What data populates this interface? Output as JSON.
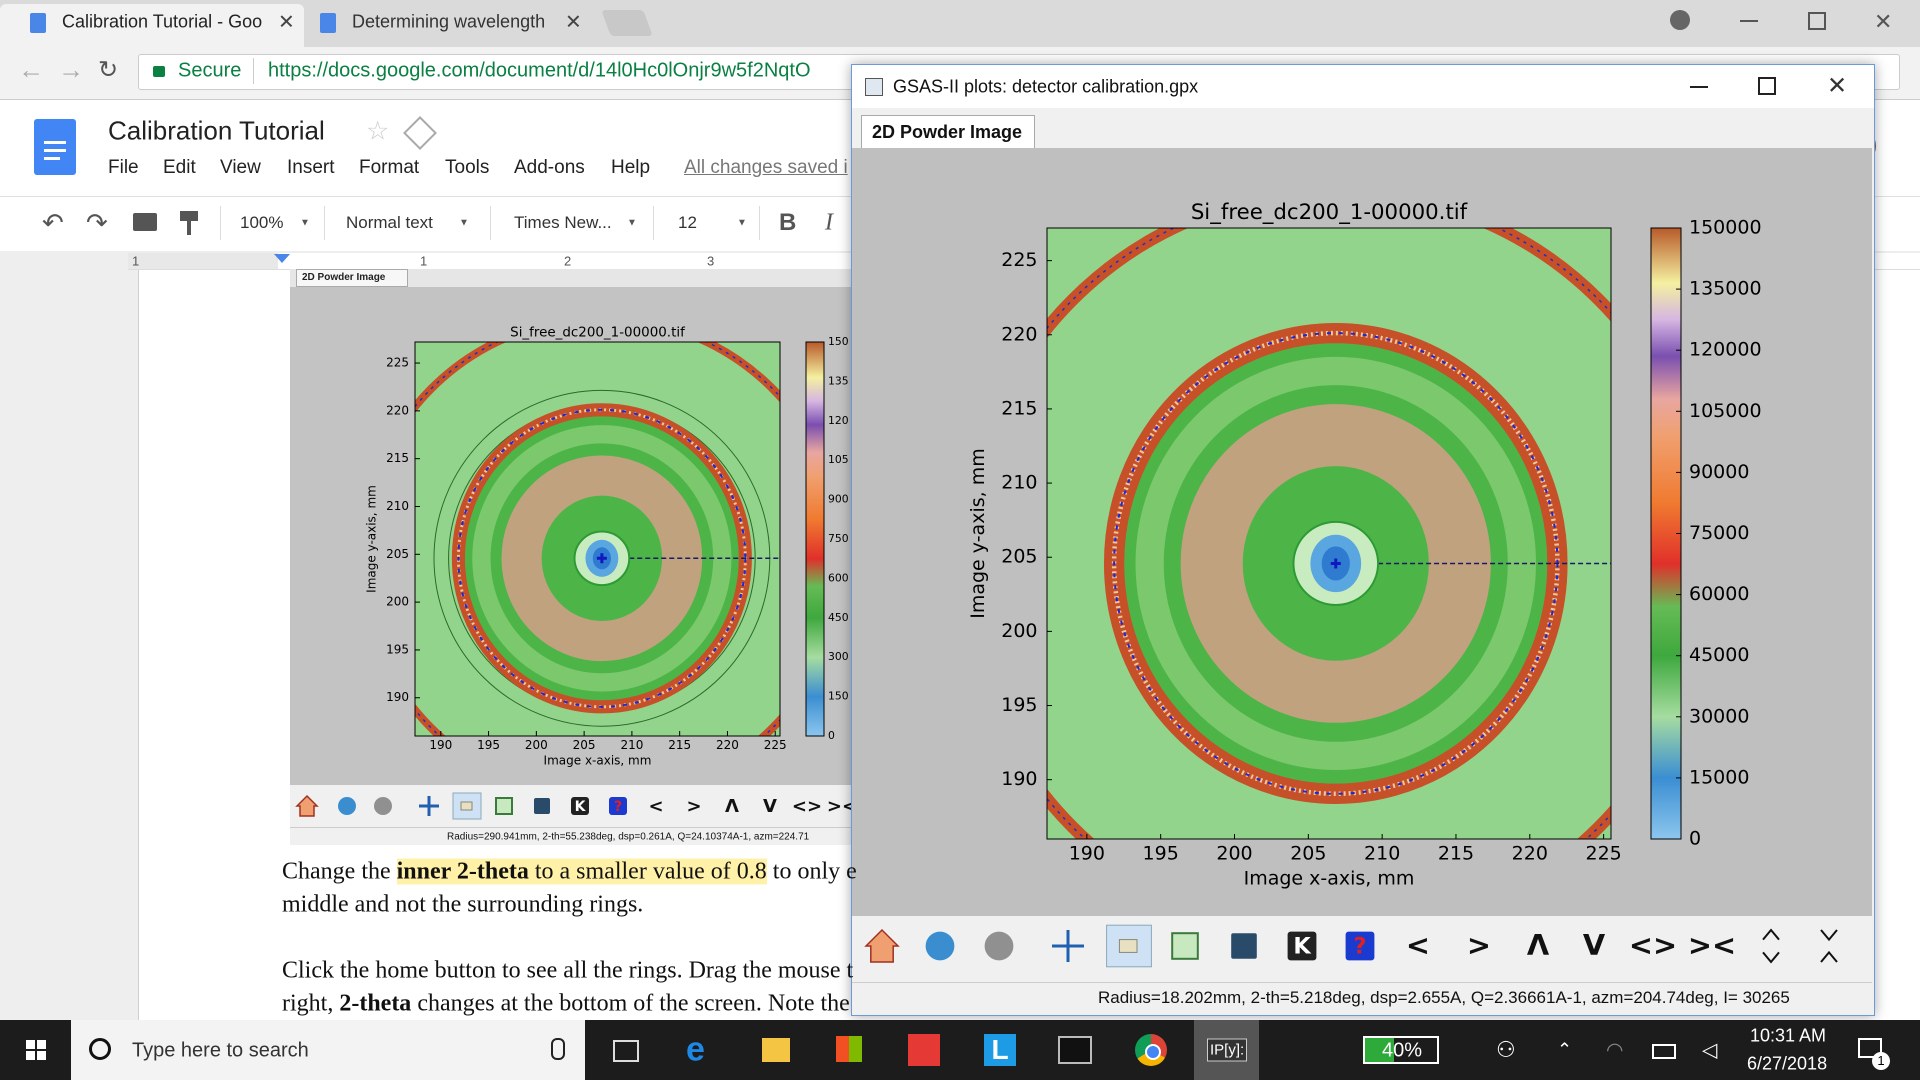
{
  "browser": {
    "tabs": [
      "Calibration Tutorial - Goo",
      "Determining wavelength"
    ],
    "secure_label": "Secure",
    "url": "https://docs.google.com/document/d/14l0Hc0lOnjr9w5f2NqtO"
  },
  "docs": {
    "title": "Calibration Tutorial",
    "menu": [
      "File",
      "Edit",
      "View",
      "Insert",
      "Format",
      "Tools",
      "Add-ons",
      "Help"
    ],
    "save_status": "All changes saved i",
    "toolbar": {
      "zoom": "100%",
      "style": "Normal text",
      "font": "Times New...",
      "size": "12",
      "bold": "B",
      "italic": "I"
    },
    "ruler": [
      "1",
      "1",
      "2",
      "3"
    ],
    "embedded_image": {
      "tab": "2D Powder Image",
      "plot": {
        "title": "Si_free_dc200_1-00000.tif",
        "xlabel": "Image x-axis, mm",
        "ylabel": "Image y-axis, mm",
        "xlim": [
          187.3,
          225.5
        ],
        "ylim": [
          186.0,
          227.2
        ],
        "xticks": [
          190,
          195,
          200,
          205,
          210,
          215,
          220,
          225
        ],
        "yticks": [
          190,
          195,
          200,
          205,
          210,
          215,
          220,
          225
        ],
        "colorbar_labels": [
          "150",
          "135",
          "120",
          "105",
          "900",
          "750",
          "600",
          "450",
          "300",
          "150",
          "0"
        ]
      },
      "toolbar": [
        "K",
        "?",
        "<",
        ">",
        "Λ",
        "V",
        "<>",
        "><"
      ],
      "status": "Radius=290.941mm, 2-th=55.238deg, dsp=0.261A, Q=24.10374A-1, azm=224.71"
    },
    "paragraphs": [
      [
        {
          "text": "Change the "
        },
        {
          "text": "inner 2-theta",
          "bold": true,
          "highlight": true
        },
        {
          "text": " to a smaller value of 0.8",
          "highlight": true
        },
        {
          "text": " to only e"
        }
      ],
      [
        {
          "text": "middle and not the surrounding rings."
        }
      ],
      [
        {
          "text": "Click the home button to see all the rings. Drag the mouse t"
        }
      ],
      [
        {
          "text": "right, "
        },
        {
          "text": "2-theta",
          "bold": true
        },
        {
          "text": " changes at the bottom of the screen. Note the"
        }
      ]
    ]
  },
  "gsas_window": {
    "title": "GSAS-II plots: detector calibration.gpx",
    "tab": "2D Powder Image",
    "plot": {
      "title": "Si_free_dc200_1-00000.tif",
      "xlabel": "Image x-axis, mm",
      "ylabel": "Image y-axis, mm",
      "xlim": [
        187.3,
        225.5
      ],
      "ylim": [
        186.0,
        227.2
      ],
      "xticks": [
        190,
        195,
        200,
        205,
        210,
        215,
        220,
        225
      ],
      "yticks": [
        190,
        195,
        200,
        205,
        210,
        215,
        220,
        225
      ],
      "clim": [
        0,
        150000
      ],
      "cticks": [
        0,
        15000,
        30000,
        45000,
        60000,
        75000,
        90000,
        105000,
        120000,
        135000,
        150000
      ]
    },
    "toolbar": [
      "K",
      "?",
      "<",
      ">",
      "Λ",
      "V",
      "<>",
      "><"
    ],
    "status": "Radius=18.202mm, 2-th=5.218deg, dsp=2.655A, Q=2.36661A-1, azm=204.74deg, I= 30265"
  },
  "taskbar": {
    "search": "Type here to search",
    "app_l": "L",
    "app_ipy": "IP[y]:",
    "battery": "40%",
    "time": "10:31 AM",
    "date": "6/27/2018",
    "notifications": "1"
  }
}
